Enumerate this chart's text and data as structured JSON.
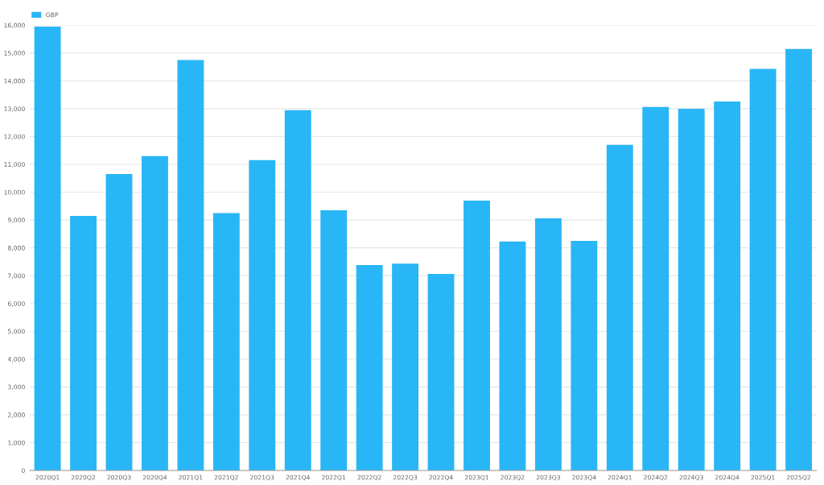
{
  "chart_data": {
    "type": "bar",
    "categories": [
      "2020Q1",
      "2020Q2",
      "2020Q3",
      "2020Q4",
      "2021Q1",
      "2021Q2",
      "2021Q3",
      "2021Q4",
      "2022Q1",
      "2022Q2",
      "2022Q3",
      "2022Q4",
      "2023Q1",
      "2023Q2",
      "2023Q3",
      "2023Q4",
      "2024Q1",
      "2024Q2",
      "2024Q3",
      "2024Q4",
      "2025Q1",
      "2025Q2"
    ],
    "series": [
      {
        "name": "GBP",
        "color": "#29b6f6",
        "values": [
          15950,
          9150,
          10650,
          11300,
          14750,
          9250,
          11150,
          12950,
          9350,
          7380,
          7430,
          7060,
          9700,
          8230,
          9060,
          8250,
          11700,
          13060,
          13000,
          13260,
          14430,
          15150
        ]
      }
    ],
    "ylim": [
      0,
      16000
    ],
    "yticks": [
      {
        "value": 0,
        "label": "0"
      },
      {
        "value": 1000,
        "label": "1,000"
      },
      {
        "value": 2000,
        "label": "2,000"
      },
      {
        "value": 3000,
        "label": "3,000"
      },
      {
        "value": 4000,
        "label": "4,000"
      },
      {
        "value": 5000,
        "label": "5,000"
      },
      {
        "value": 6000,
        "label": "6,000"
      },
      {
        "value": 7000,
        "label": "7,000"
      },
      {
        "value": 8000,
        "label": "8,000"
      },
      {
        "value": 9000,
        "label": "9,000"
      },
      {
        "value": 10000,
        "label": "10,000"
      },
      {
        "value": 11000,
        "label": "11,000"
      },
      {
        "value": 12000,
        "label": "12,000"
      },
      {
        "value": 13000,
        "label": "13,000"
      },
      {
        "value": 14000,
        "label": "14,000"
      },
      {
        "value": 15000,
        "label": "15,000"
      },
      {
        "value": 16000,
        "label": "16,000"
      }
    ],
    "grid": "y",
    "legend": "top left"
  }
}
